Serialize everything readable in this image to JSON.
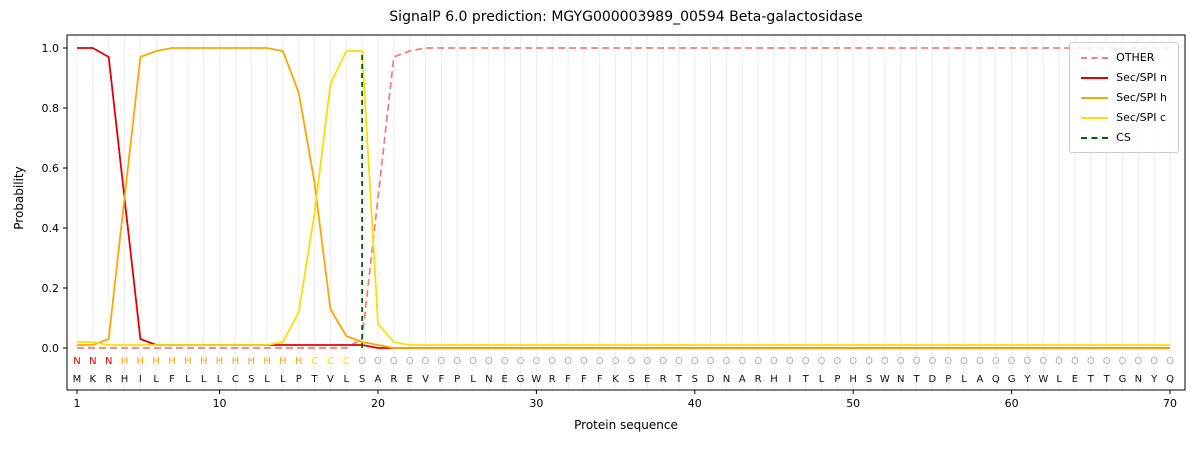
{
  "chart_data": {
    "type": "line",
    "title": "SignalP 6.0 prediction: MGYG000003989_00594 Beta-galactosidase",
    "xlabel": "Protein sequence",
    "ylabel": "Probability",
    "xticks": [
      1,
      10,
      20,
      30,
      40,
      50,
      60,
      70
    ],
    "yticks": [
      0.0,
      0.2,
      0.4,
      0.6,
      0.8,
      1.0
    ],
    "xlim": [
      1,
      70
    ],
    "ylim": [
      0,
      1
    ],
    "grid": "vertical-per-residue",
    "legend_position": "upper-right",
    "sequence": "MKRHILFLLLCSLLPTVLSAREVFPLNEGWRFFFKSERTSDNARHITLPHSWNTDPLAQGYWLETTGNYQ",
    "regions": [
      {
        "label": "N",
        "color": "#e50000",
        "start": 1,
        "end": 3
      },
      {
        "label": "H",
        "color": "#ffa500",
        "start": 4,
        "end": 15
      },
      {
        "label": "C",
        "color": "#ffdd00",
        "start": 16,
        "end": 18
      },
      {
        "label": "O",
        "color": "#b0b0b0",
        "start": 19,
        "end": 70
      }
    ],
    "series": [
      {
        "name": "OTHER",
        "color": "#f08080",
        "dash": "dashed",
        "values": [
          0,
          0,
          0,
          0,
          0,
          0,
          0,
          0,
          0,
          0,
          0,
          0,
          0,
          0,
          0,
          0,
          0,
          0,
          0.03,
          0.5,
          0.97,
          0.99,
          1,
          1,
          1,
          1,
          1,
          1,
          1,
          1,
          1,
          1,
          1,
          1,
          1,
          1,
          1,
          1,
          1,
          1,
          1,
          1,
          1,
          1,
          1,
          1,
          1,
          1,
          1,
          1,
          1,
          1,
          1,
          1,
          1,
          1,
          1,
          1,
          1,
          1,
          1,
          1,
          1,
          1,
          1,
          1,
          1,
          1,
          1,
          1
        ]
      },
      {
        "name": "Sec/SPI n",
        "color": "#e50000",
        "dash": "solid",
        "values": [
          1,
          1,
          0.97,
          0.5,
          0.03,
          0.01,
          0.01,
          0.01,
          0.01,
          0.01,
          0.01,
          0.01,
          0.01,
          0.01,
          0.01,
          0.01,
          0.01,
          0.01,
          0.01,
          0,
          0,
          0,
          0,
          0,
          0,
          0,
          0,
          0,
          0,
          0,
          0,
          0,
          0,
          0,
          0,
          0,
          0,
          0,
          0,
          0,
          0,
          0,
          0,
          0,
          0,
          0,
          0,
          0,
          0,
          0,
          0,
          0,
          0,
          0,
          0,
          0,
          0,
          0,
          0,
          0,
          0,
          0,
          0,
          0,
          0,
          0,
          0,
          0,
          0,
          0
        ]
      },
      {
        "name": "Sec/SPI h",
        "color": "#ffa500",
        "dash": "solid",
        "values": [
          0.01,
          0.01,
          0.03,
          0.5,
          0.97,
          0.99,
          1,
          1,
          1,
          1,
          1,
          1,
          1,
          0.99,
          0.85,
          0.55,
          0.13,
          0.04,
          0.02,
          0.01,
          0,
          0,
          0,
          0,
          0,
          0,
          0,
          0,
          0,
          0,
          0,
          0,
          0,
          0,
          0,
          0,
          0,
          0,
          0,
          0,
          0,
          0,
          0,
          0,
          0,
          0,
          0,
          0,
          0,
          0,
          0,
          0,
          0,
          0,
          0,
          0,
          0,
          0,
          0,
          0,
          0,
          0,
          0,
          0,
          0,
          0,
          0,
          0,
          0,
          0
        ]
      },
      {
        "name": "Sec/SPI c",
        "color": "#ffdd00",
        "dash": "solid",
        "values": [
          0.02,
          0.02,
          0.01,
          0.01,
          0.01,
          0.01,
          0.01,
          0.01,
          0.01,
          0.01,
          0.01,
          0.01,
          0.01,
          0.02,
          0.12,
          0.45,
          0.88,
          0.99,
          0.99,
          0.08,
          0.02,
          0.01,
          0.01,
          0.01,
          0.01,
          0.01,
          0.01,
          0.01,
          0.01,
          0.01,
          0.01,
          0.01,
          0.01,
          0.01,
          0.01,
          0.01,
          0.01,
          0.01,
          0.01,
          0.01,
          0.01,
          0.01,
          0.01,
          0.01,
          0.01,
          0.01,
          0.01,
          0.01,
          0.01,
          0.01,
          0.01,
          0.01,
          0.01,
          0.01,
          0.01,
          0.01,
          0.01,
          0.01,
          0.01,
          0.01,
          0.01,
          0.01,
          0.01,
          0.01,
          0.01,
          0.01,
          0.01,
          0.01,
          0.01,
          0.01
        ]
      }
    ],
    "cs": {
      "name": "CS",
      "color": "#006400",
      "dash": "dashed",
      "x": 19,
      "ymax": 0.99
    }
  },
  "legend": {
    "items": [
      {
        "label": "OTHER",
        "color": "#f08080",
        "dash": "dashed"
      },
      {
        "label": "Sec/SPI n",
        "color": "#e50000",
        "dash": "solid"
      },
      {
        "label": "Sec/SPI h",
        "color": "#ffa500",
        "dash": "solid"
      },
      {
        "label": "Sec/SPI c",
        "color": "#ffdd00",
        "dash": "solid"
      },
      {
        "label": "CS",
        "color": "#006400",
        "dash": "dashed"
      }
    ]
  }
}
